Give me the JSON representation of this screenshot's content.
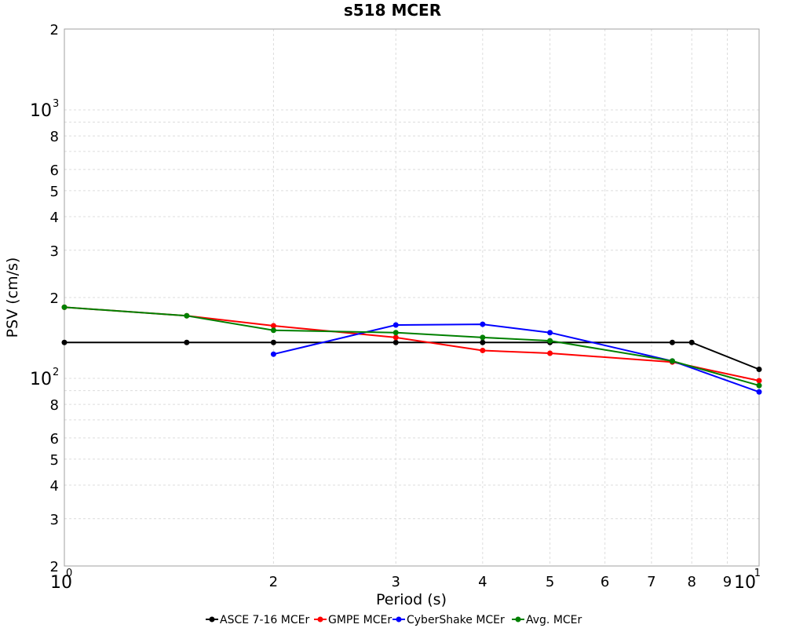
{
  "chart_data": {
    "type": "line",
    "title": "s518 MCER",
    "xlabel": "Period (s)",
    "ylabel": "PSV (cm/s)",
    "x_scale": "log",
    "y_scale": "log",
    "xlim": [
      1,
      10
    ],
    "ylim": [
      20,
      2000
    ],
    "grid": true,
    "legend_position": "bottom",
    "x_ticks": [
      {
        "value": 1,
        "label": "10",
        "exp": "0",
        "major": true
      },
      {
        "value": 2,
        "label": "2",
        "exp": "",
        "major": false
      },
      {
        "value": 3,
        "label": "3",
        "exp": "",
        "major": false
      },
      {
        "value": 4,
        "label": "4",
        "exp": "",
        "major": false
      },
      {
        "value": 5,
        "label": "5",
        "exp": "",
        "major": false
      },
      {
        "value": 6,
        "label": "6",
        "exp": "",
        "major": false
      },
      {
        "value": 7,
        "label": "7",
        "exp": "",
        "major": false
      },
      {
        "value": 8,
        "label": "8",
        "exp": "",
        "major": false
      },
      {
        "value": 9,
        "label": "9",
        "exp": "",
        "major": false
      },
      {
        "value": 10,
        "label": "10",
        "exp": "1",
        "major": true
      }
    ],
    "y_ticks": [
      {
        "value": 20,
        "label": "2",
        "exp": "",
        "major": false
      },
      {
        "value": 30,
        "label": "3",
        "exp": "",
        "major": false
      },
      {
        "value": 40,
        "label": "4",
        "exp": "",
        "major": false
      },
      {
        "value": 50,
        "label": "5",
        "exp": "",
        "major": false
      },
      {
        "value": 60,
        "label": "6",
        "exp": "",
        "major": false
      },
      {
        "value": 80,
        "label": "8",
        "exp": "",
        "major": false
      },
      {
        "value": 100,
        "label": "10",
        "exp": "2",
        "major": true
      },
      {
        "value": 200,
        "label": "2",
        "exp": "",
        "major": false
      },
      {
        "value": 300,
        "label": "3",
        "exp": "",
        "major": false
      },
      {
        "value": 400,
        "label": "4",
        "exp": "",
        "major": false
      },
      {
        "value": 500,
        "label": "5",
        "exp": "",
        "major": false
      },
      {
        "value": 600,
        "label": "6",
        "exp": "",
        "major": false
      },
      {
        "value": 800,
        "label": "8",
        "exp": "",
        "major": false
      },
      {
        "value": 1000,
        "label": "10",
        "exp": "3",
        "major": true
      },
      {
        "value": 2000,
        "label": "2",
        "exp": "",
        "major": false
      }
    ],
    "x_grid": [
      1,
      2,
      3,
      4,
      5,
      6,
      7,
      8,
      9,
      10
    ],
    "y_grid": [
      20,
      30,
      40,
      50,
      60,
      70,
      80,
      90,
      100,
      200,
      300,
      400,
      500,
      600,
      700,
      800,
      900,
      1000,
      2000
    ],
    "series": [
      {
        "name": "ASCE 7-16 MCEr",
        "color": "#000000",
        "x": [
          1.0,
          1.5,
          2.0,
          3.0,
          4.0,
          5.0,
          7.5,
          8.0,
          10.0
        ],
        "y": [
          136,
          136,
          136,
          136,
          136,
          136,
          136,
          136,
          108
        ]
      },
      {
        "name": "GMPE MCEr",
        "color": "#ff0000",
        "x": [
          1.0,
          1.5,
          2.0,
          3.0,
          4.0,
          5.0,
          7.5,
          10.0
        ],
        "y": [
          184,
          171,
          157,
          142,
          127,
          124,
          115,
          98
        ]
      },
      {
        "name": "CyberShake MCEr",
        "color": "#0000ff",
        "x": [
          2.0,
          3.0,
          4.0,
          5.0,
          7.5,
          10.0
        ],
        "y": [
          123,
          158,
          159,
          148,
          116,
          89
        ]
      },
      {
        "name": "Avg. MCEr",
        "color": "#008000",
        "x": [
          1.0,
          1.5,
          2.0,
          3.0,
          4.0,
          5.0,
          7.5,
          10.0
        ],
        "y": [
          184,
          171,
          151,
          148,
          142,
          138,
          116,
          94
        ]
      }
    ]
  }
}
